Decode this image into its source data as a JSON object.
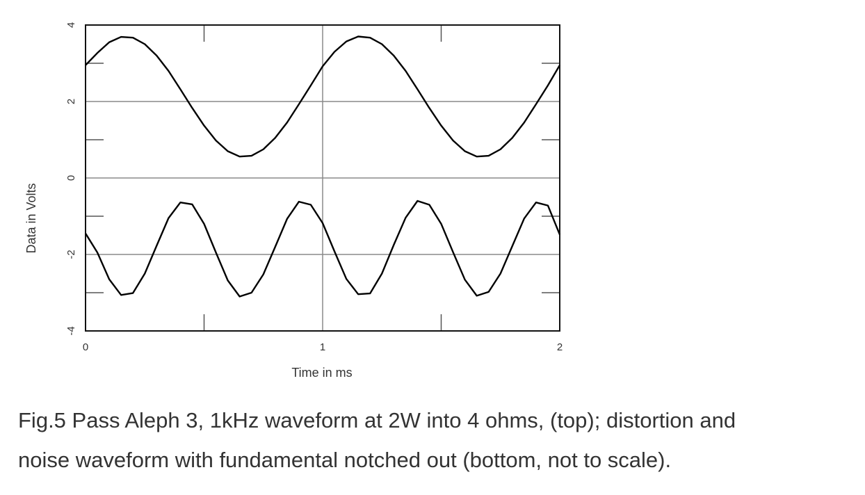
{
  "chart_data": {
    "type": "line",
    "xlabel": "Time in ms",
    "ylabel": "Data in Volts",
    "caption": [
      "Fig.5 Pass Aleph 3, 1kHz waveform at 2W into 4 ohms, (top); distortion and",
      "noise waveform with fundamental notched out (bottom, not to scale)."
    ],
    "x": [
      0,
      0.05,
      0.1,
      0.15,
      0.2,
      0.25,
      0.3,
      0.35,
      0.4,
      0.45,
      0.5,
      0.55,
      0.6,
      0.65,
      0.7,
      0.75,
      0.8,
      0.85,
      0.9,
      0.95,
      1,
      1.05,
      1.1,
      1.15,
      1.2,
      1.25,
      1.3,
      1.35,
      1.4,
      1.45,
      1.5,
      1.55,
      1.6,
      1.65,
      1.7,
      1.75,
      1.8,
      1.85,
      1.9,
      1.95,
      2
    ],
    "series": [
      {
        "color": "#000000",
        "values": [
          2.95,
          3.27,
          3.55,
          3.69,
          3.67,
          3.5,
          3.2,
          2.8,
          2.32,
          1.83,
          1.37,
          0.98,
          0.7,
          0.56,
          0.58,
          0.75,
          1.05,
          1.45,
          1.93,
          2.42,
          2.92,
          3.3,
          3.57,
          3.7,
          3.67,
          3.5,
          3.2,
          2.8,
          2.32,
          1.83,
          1.37,
          0.98,
          0.7,
          0.56,
          0.58,
          0.75,
          1.05,
          1.45,
          1.93,
          2.42,
          2.95
        ]
      },
      {
        "color": "#000000",
        "values": [
          -1.45,
          -1.95,
          -2.65,
          -3.06,
          -3.01,
          -2.5,
          -1.77,
          -1.05,
          -0.64,
          -0.69,
          -1.2,
          -1.95,
          -2.68,
          -3.1,
          -3.0,
          -2.52,
          -1.8,
          -1.07,
          -0.62,
          -0.7,
          -1.18,
          -1.92,
          -2.64,
          -3.04,
          -3.02,
          -2.5,
          -1.75,
          -1.04,
          -0.6,
          -0.7,
          -1.2,
          -1.94,
          -2.66,
          -3.08,
          -2.98,
          -2.5,
          -1.78,
          -1.06,
          -0.64,
          -0.72,
          -1.48
        ]
      }
    ],
    "xlim": [
      0,
      2
    ],
    "xticks": [
      0,
      1,
      2
    ],
    "minor_xticks": [
      0.5,
      1.5
    ],
    "ylim": [
      -4,
      4
    ],
    "yticks": [
      -4,
      -2,
      0,
      2,
      4
    ],
    "minor_yticks": [
      -3,
      -1,
      1,
      3
    ],
    "grid": true
  }
}
